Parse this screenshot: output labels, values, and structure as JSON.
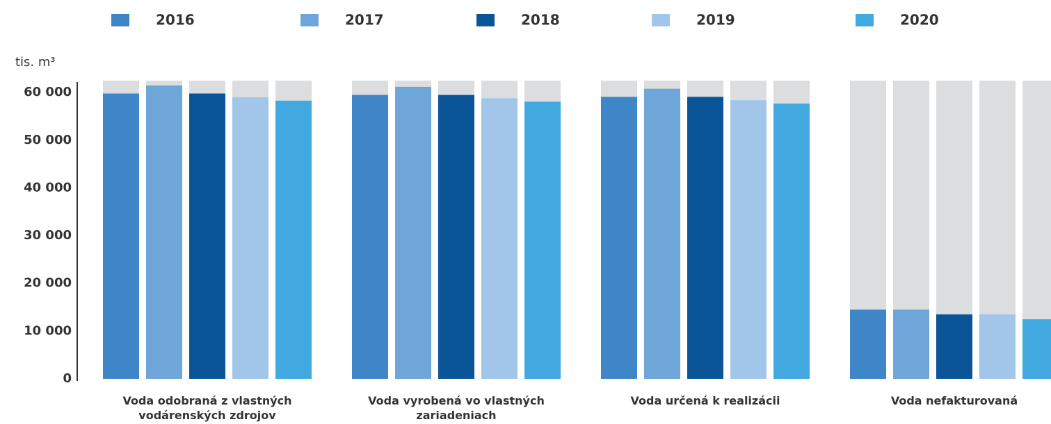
{
  "chart_data": {
    "type": "bar",
    "y_label": "tis. m³",
    "categories": [
      "Voda odobraná z vlastných vodárenských zdrojov",
      "Voda vyrobená vo vlastných zariadeniach",
      "Voda určená k realizácii",
      "Voda nefakturovaná"
    ],
    "series": [
      {
        "name": "2016",
        "color": "#3f86c8",
        "values": [
          59800,
          59500,
          59100,
          14500
        ]
      },
      {
        "name": "2017",
        "color": "#6fa6da",
        "values": [
          61500,
          61200,
          60800,
          14500
        ]
      },
      {
        "name": "2018",
        "color": "#0a5597",
        "values": [
          59800,
          59500,
          59100,
          13500
        ]
      },
      {
        "name": "2019",
        "color": "#a2c6ea",
        "values": [
          59000,
          58800,
          58400,
          13500
        ]
      },
      {
        "name": "2020",
        "color": "#42a9e0",
        "values": [
          58300,
          58100,
          57700,
          12500
        ]
      }
    ],
    "background_color": "#dcdddf",
    "ylim": [
      0,
      62500
    ],
    "yticks": [
      0,
      {
        "value": 10000,
        "label": "10 000"
      },
      {
        "value": 20000,
        "label": "20 000"
      },
      {
        "value": 30000,
        "label": "30 000"
      },
      {
        "value": 40000,
        "label": "40 000"
      },
      {
        "value": 50000,
        "label": "50 000"
      },
      {
        "value": 60000,
        "label": "60 000"
      }
    ],
    "legend": "top"
  }
}
